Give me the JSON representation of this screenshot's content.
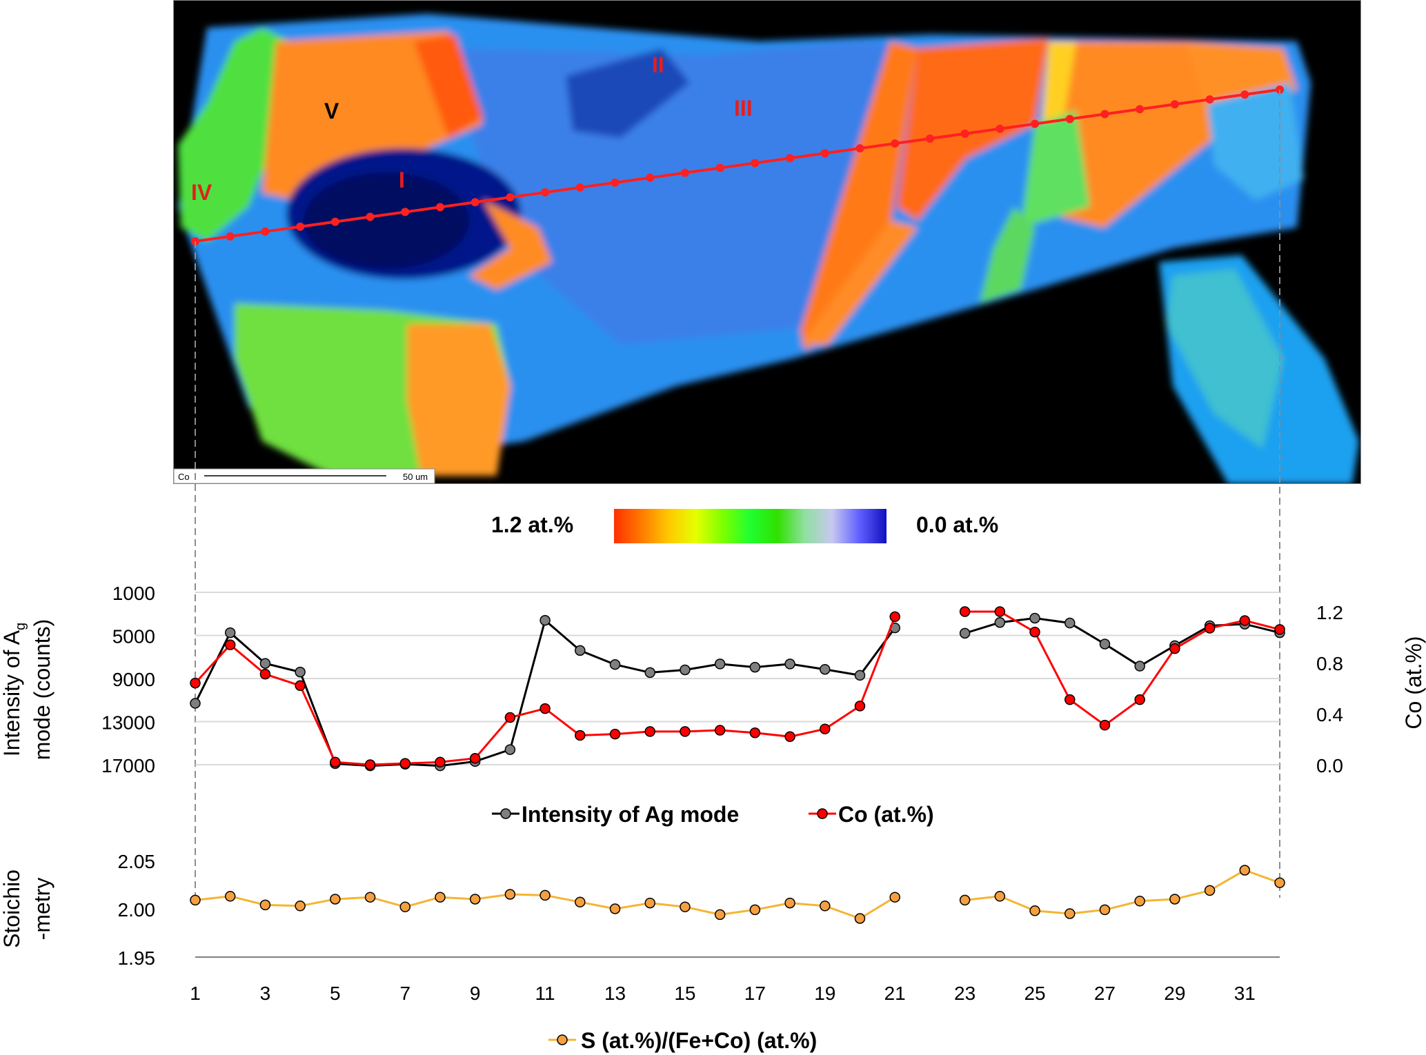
{
  "map": {
    "region_labels": [
      "I",
      "II",
      "III",
      "IV",
      "V"
    ],
    "scale_label": "Co",
    "scale_text": "50 um",
    "colorbar": {
      "left_label": "1.2 at.%",
      "right_label": "0.0 at.%",
      "colors": [
        "#ff3000",
        "#ff7a00",
        "#ffc800",
        "#e6ff00",
        "#7cff00",
        "#20ff30",
        "#30e000",
        "#90e0a0",
        "#c8c8f0",
        "#6060ff",
        "#1010c0"
      ]
    },
    "colors": {
      "red": "#e41e1e",
      "black": "#000000",
      "accent": "#ff2020"
    }
  },
  "chart_data": [
    {
      "type": "line",
      "title": "",
      "x": [
        1,
        2,
        3,
        4,
        5,
        6,
        7,
        8,
        9,
        10,
        11,
        12,
        13,
        14,
        15,
        16,
        17,
        18,
        19,
        20,
        21,
        23,
        24,
        25,
        26,
        27,
        28,
        29,
        30,
        31,
        32
      ],
      "xticks": [
        "1",
        "3",
        "5",
        "7",
        "9",
        "11",
        "13",
        "15",
        "17",
        "19",
        "21",
        "23",
        "25",
        "27",
        "29",
        "31"
      ],
      "ylabel_left": "Intensity of Ag mode (counts)",
      "ylabel_left_line1": "Intensity of A",
      "ylabel_left_sub": "g",
      "ylabel_left_line2": "mode (counts)",
      "ylabel_right": "Co (at.%)",
      "y_left_ticks": [
        "1000",
        "5000",
        "9000",
        "13000",
        "17000"
      ],
      "y_left_range": [
        17000,
        1000
      ],
      "y_right_ticks": [
        "1.2",
        "0.8",
        "0.4",
        "0.0"
      ],
      "y_right_range": [
        0,
        1.4
      ],
      "legend": [
        "Intensity of Ag mode",
        "Co (at.%)"
      ],
      "series": [
        {
          "name": "Intensity of Ag mode",
          "axis": "left",
          "color": "#000000",
          "marker_color": "#7f7f7f",
          "values": [
            11300,
            4750,
            7600,
            8400,
            16900,
            17100,
            16950,
            17100,
            16700,
            15600,
            3600,
            6400,
            7700,
            8450,
            8200,
            7650,
            7950,
            7650,
            8150,
            8700,
            4300,
            4800,
            3800,
            3400,
            3850,
            5800,
            7850,
            5950,
            4100,
            3950,
            4750
          ]
        },
        {
          "name": "Co (at.%)",
          "axis": "right",
          "color": "#ff0000",
          "marker_color": "#ff0000",
          "values": [
            0.64,
            0.94,
            0.71,
            0.62,
            0.02,
            0.0,
            0.01,
            0.02,
            0.05,
            0.37,
            0.44,
            0.23,
            0.24,
            0.26,
            0.26,
            0.27,
            0.25,
            0.22,
            0.28,
            0.46,
            1.16,
            1.2,
            1.2,
            1.04,
            0.51,
            0.31,
            0.51,
            0.91,
            1.07,
            1.13,
            1.06
          ]
        }
      ]
    },
    {
      "type": "line",
      "title": "",
      "x": [
        1,
        2,
        3,
        4,
        5,
        6,
        7,
        8,
        9,
        10,
        11,
        12,
        13,
        14,
        15,
        16,
        17,
        18,
        19,
        20,
        21,
        23,
        24,
        25,
        26,
        27,
        28,
        29,
        30,
        31,
        32
      ],
      "ylabel_line1": "Stoichio",
      "ylabel_line2": "-metry",
      "yticks": [
        "2.05",
        "2.00",
        "1.95"
      ],
      "ylim": [
        1.95,
        2.05
      ],
      "legend": [
        "S (at.%)/(Fe+Co) (at.%)"
      ],
      "series": [
        {
          "name": "S (at.%)/(Fe+Co) (at.%)",
          "color": "#f5b432",
          "marker_color": "#f5a040",
          "values": [
            2.009,
            2.013,
            2.004,
            2.003,
            2.01,
            2.012,
            2.002,
            2.012,
            2.01,
            2.015,
            2.014,
            2.007,
            2.0,
            2.006,
            2.002,
            1.994,
            1.999,
            2.006,
            2.003,
            1.99,
            2.012,
            2.009,
            2.013,
            1.998,
            1.995,
            1.999,
            2.008,
            2.01,
            2.019,
            2.04,
            2.027
          ]
        }
      ]
    }
  ]
}
